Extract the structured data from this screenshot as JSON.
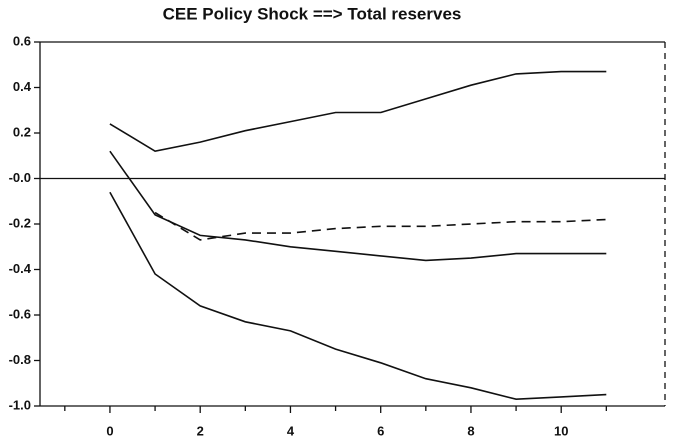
{
  "chart_data": {
    "type": "line",
    "title": "CEE Policy Shock ==> Total reserves",
    "x": [
      0,
      1,
      2,
      3,
      4,
      5,
      6,
      7,
      8,
      9,
      10,
      11
    ],
    "series": [
      {
        "color": "#111111",
        "dash": false,
        "values": [
          0.24,
          0.12,
          0.16,
          0.21,
          0.25,
          0.29,
          0.29,
          0.35,
          0.41,
          0.46,
          0.47,
          0.47
        ]
      },
      {
        "color": "#111111",
        "dash": false,
        "values": [
          0.12,
          -0.16,
          -0.25,
          -0.27,
          -0.3,
          -0.32,
          -0.34,
          -0.36,
          -0.35,
          -0.33,
          -0.33,
          -0.33
        ]
      },
      {
        "color": "#111111",
        "dash": true,
        "values": [
          null,
          -0.15,
          -0.27,
          -0.24,
          -0.24,
          -0.22,
          -0.21,
          -0.21,
          -0.2,
          -0.19,
          -0.19,
          -0.18
        ]
      },
      {
        "color": "#111111",
        "dash": false,
        "values": [
          -0.06,
          -0.42,
          -0.56,
          -0.63,
          -0.67,
          -0.75,
          -0.81,
          -0.88,
          -0.92,
          -0.97,
          -0.96,
          -0.95
        ]
      }
    ],
    "xlim": [
      -1.55,
      12.3
    ],
    "xticks": [
      0,
      2,
      4,
      6,
      8,
      10
    ],
    "xminor": [
      -1,
      1,
      3,
      5,
      7,
      9,
      11
    ],
    "ylim": [
      -1.0,
      0.6
    ],
    "yticks": [
      {
        "value": -1.0,
        "label": "-1.0"
      },
      -0.8,
      -0.6,
      -0.4,
      -0.2,
      {
        "value": 0,
        "label": "-0.0"
      },
      0.2,
      0.4,
      0.6
    ],
    "zero_line": true,
    "grid": false
  }
}
